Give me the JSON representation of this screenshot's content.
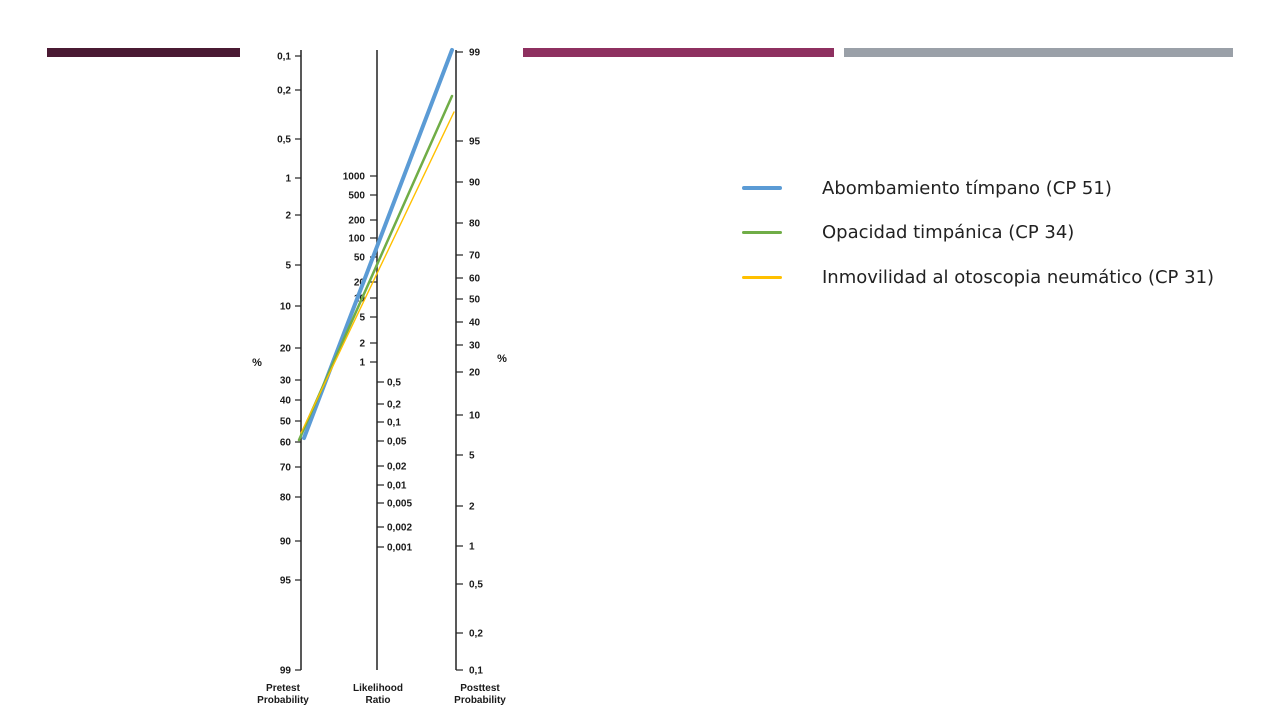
{
  "header": {
    "accents": [
      "#4a1a33",
      "#8e3060",
      "#9aa0a8"
    ]
  },
  "nomogram": {
    "pretest": {
      "ticks": [
        "0,1",
        "0,2",
        "0,5",
        "1",
        "2",
        "5",
        "10",
        "20",
        "30",
        "40",
        "50",
        "60",
        "70",
        "80",
        "90",
        "95",
        "99"
      ],
      "unit": "%",
      "label": [
        "Pretest",
        "Probability"
      ]
    },
    "likelihood": {
      "ticks": [
        "1000",
        "500",
        "200",
        "100",
        "50",
        "20",
        "10",
        "5",
        "2",
        "1",
        "0,5",
        "0,2",
        "0,1",
        "0,05",
        "0,02",
        "0,01",
        "0,005",
        "0,002",
        "0,001"
      ],
      "label": [
        "Likelihood",
        "Ratio"
      ]
    },
    "posttest": {
      "ticks": [
        "99",
        "95",
        "90",
        "80",
        "70",
        "60",
        "50",
        "40",
        "30",
        "20",
        "10",
        "5",
        "2",
        "1",
        "0,5",
        "0,2",
        "0,1"
      ],
      "unit": "%",
      "label": [
        "Posttest",
        "Probability"
      ]
    },
    "lines": [
      {
        "name": "Abombamiento tímpano (CP 51)",
        "color": "#5b9bd5"
      },
      {
        "name": "Opacidad timpánica (CP 34)",
        "color": "#70ad47"
      },
      {
        "name": "Inmovilidad al otoscopia neumático (CP 31)",
        "color": "#ffc000"
      }
    ]
  },
  "legend": [
    {
      "label": "Abombamiento tímpano (CP 51)",
      "color": "#5b9bd5"
    },
    {
      "label": "Opacidad timpánica (CP 34)",
      "color": "#70ad47"
    },
    {
      "label": "Inmovilidad al otoscopia neumático (CP 31)",
      "color": "#ffc000"
    }
  ]
}
